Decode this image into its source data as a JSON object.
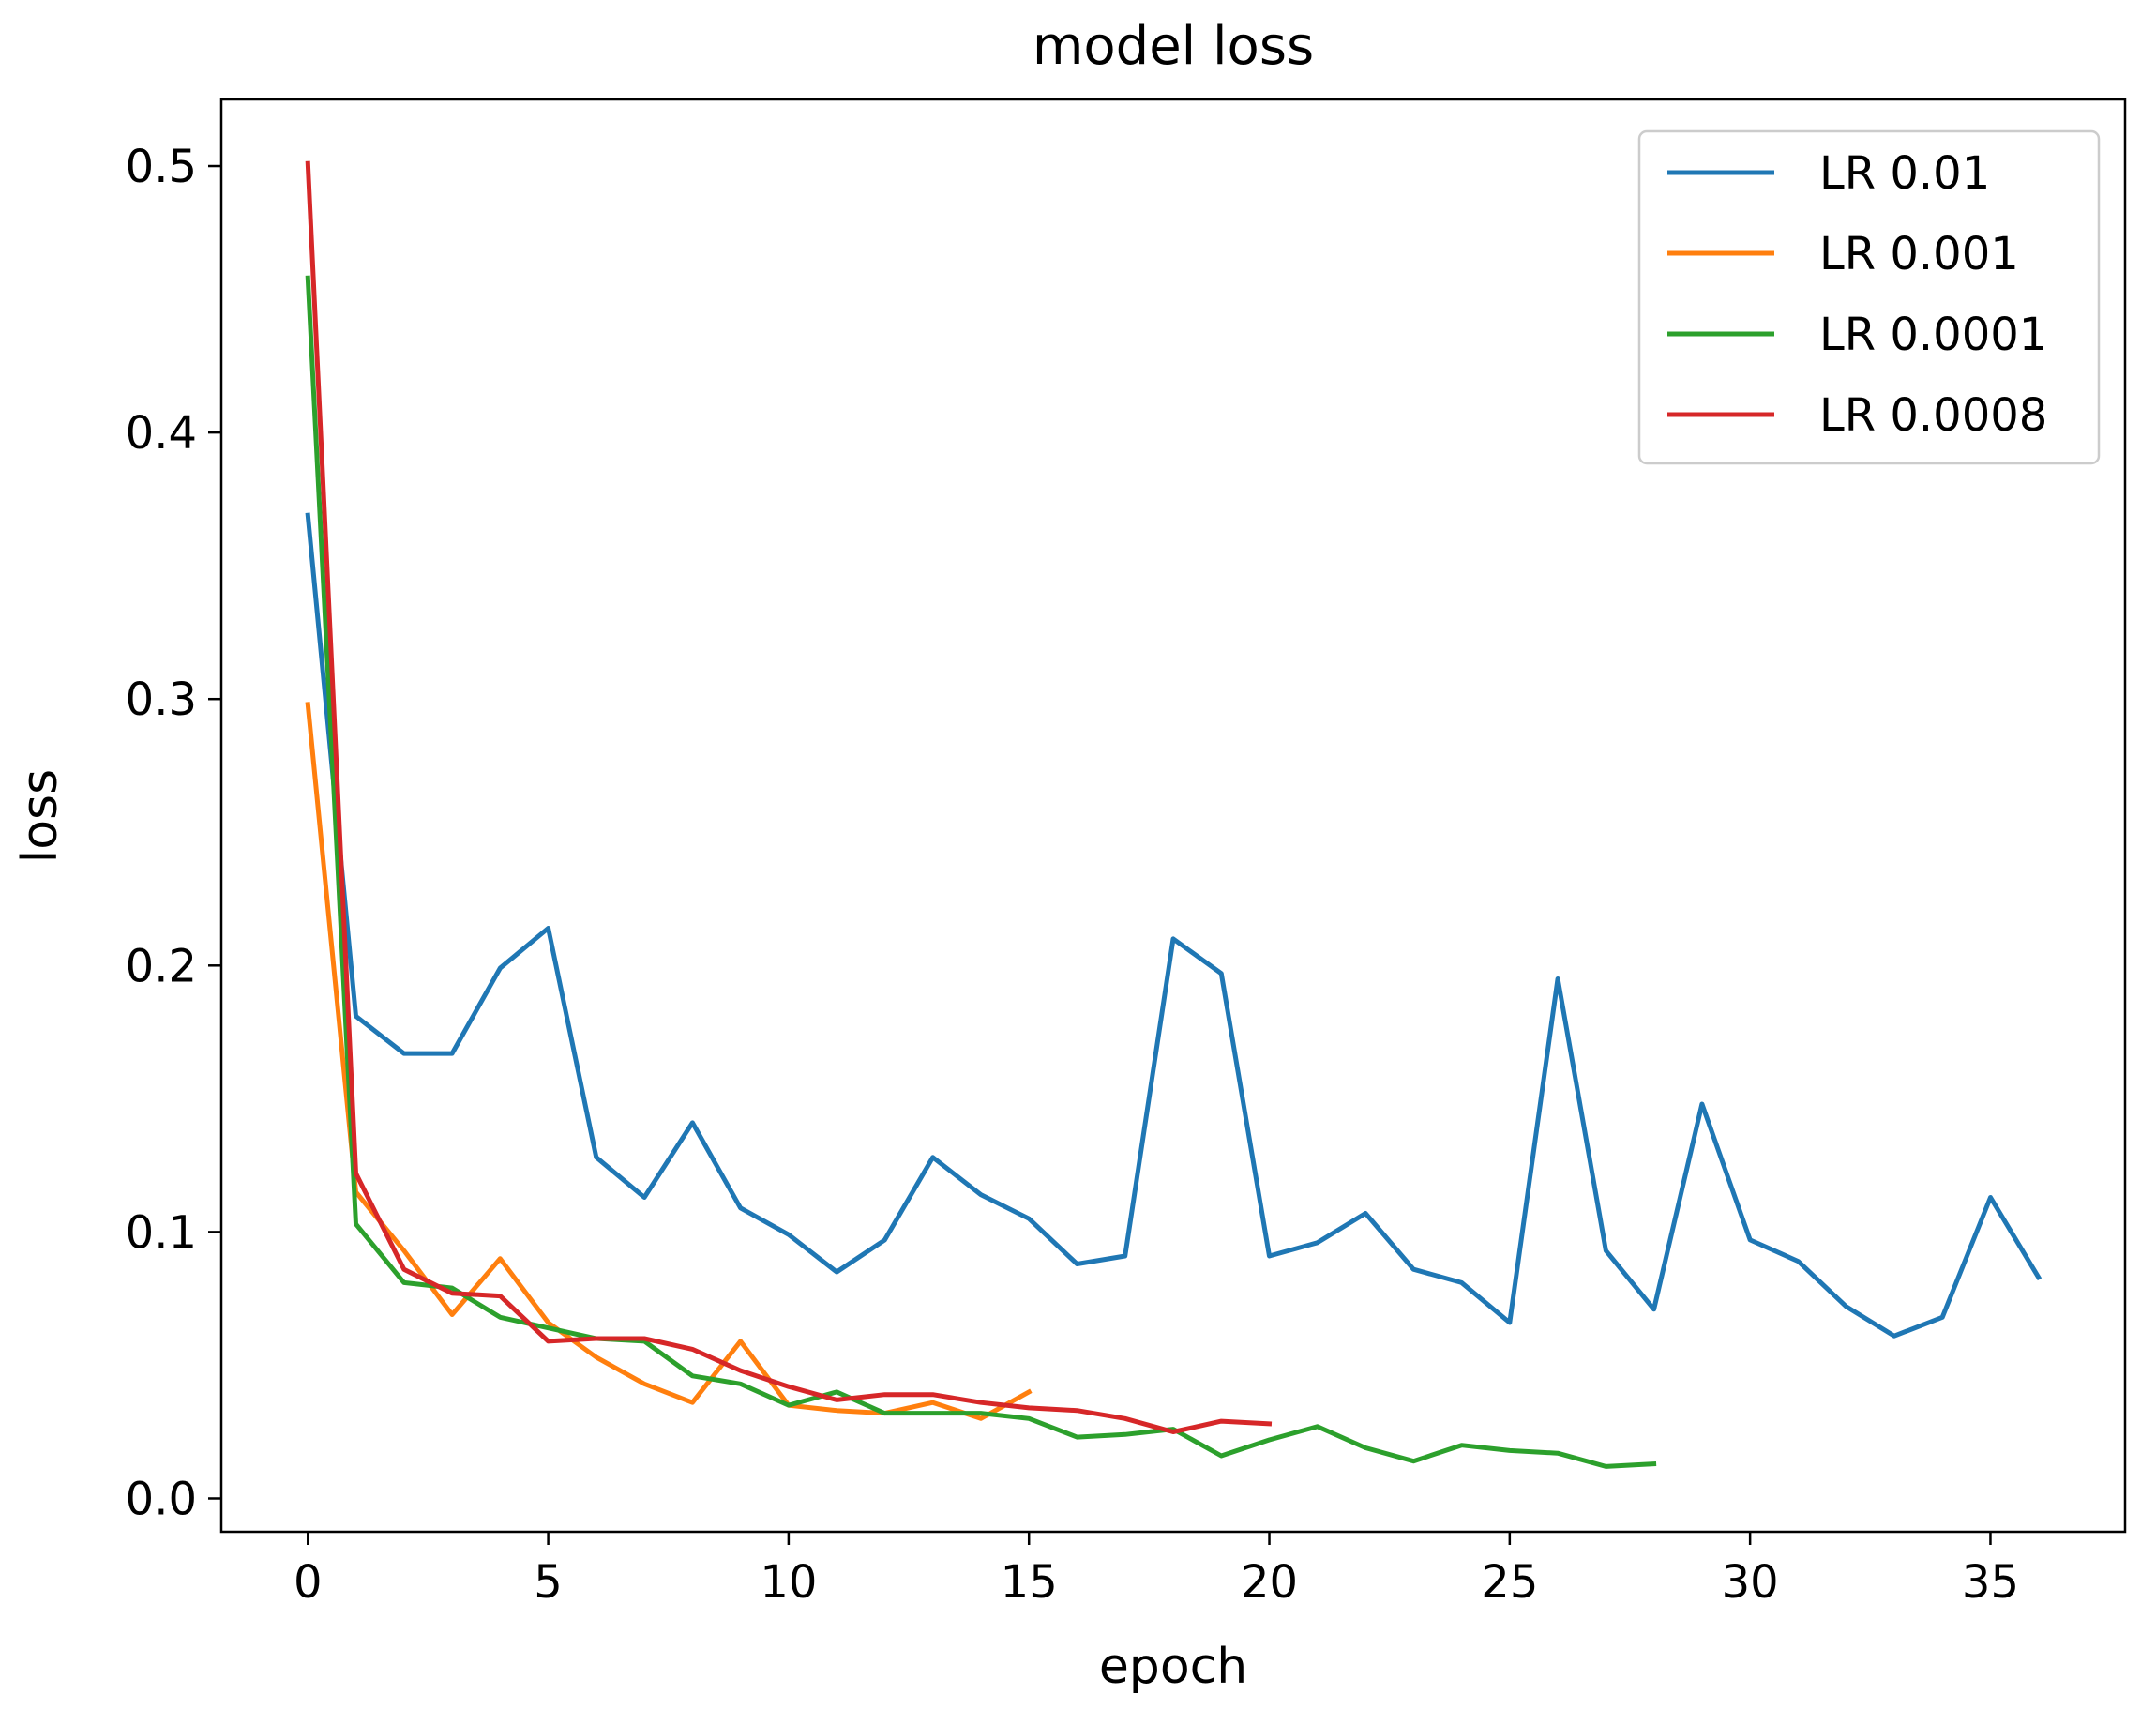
{
  "chart_data": {
    "type": "line",
    "title": "model loss",
    "xlabel": "epoch",
    "ylabel": "loss",
    "xlim": [
      -1.8,
      37.8
    ],
    "ylim": [
      -0.0125,
      0.525
    ],
    "xticks": [
      0,
      5,
      10,
      15,
      20,
      25,
      30,
      35
    ],
    "xtick_labels": [
      "0",
      "5",
      "10",
      "15",
      "20",
      "25",
      "30",
      "35"
    ],
    "yticks": [
      0.0,
      0.1,
      0.2,
      0.3,
      0.4,
      0.5
    ],
    "ytick_labels": [
      "0.0",
      "0.1",
      "0.2",
      "0.3",
      "0.4",
      "0.5"
    ],
    "grid": false,
    "legend_position": "top-right",
    "series": [
      {
        "name": "LR 0.01",
        "color": "#1f77b4",
        "x": [
          0,
          1,
          2,
          3,
          4,
          5,
          6,
          7,
          8,
          9,
          10,
          11,
          12,
          13,
          14,
          15,
          16,
          17,
          18,
          19,
          20,
          21,
          22,
          23,
          24,
          25,
          26,
          27,
          28,
          29,
          30,
          31,
          32,
          33,
          34,
          35,
          36
        ],
        "values": [
          0.369,
          0.181,
          0.167,
          0.167,
          0.199,
          0.214,
          0.128,
          0.113,
          0.141,
          0.109,
          0.099,
          0.085,
          0.097,
          0.128,
          0.114,
          0.105,
          0.088,
          0.091,
          0.21,
          0.197,
          0.091,
          0.096,
          0.107,
          0.086,
          0.081,
          0.066,
          0.195,
          0.093,
          0.071,
          0.148,
          0.097,
          0.089,
          0.072,
          0.061,
          0.068,
          0.113,
          0.083
        ]
      },
      {
        "name": "LR 0.001",
        "color": "#ff7f0e",
        "x": [
          0,
          1,
          2,
          3,
          4,
          5,
          6,
          7,
          8,
          9,
          10,
          11,
          12,
          13,
          14,
          15
        ],
        "values": [
          0.298,
          0.115,
          0.093,
          0.069,
          0.09,
          0.066,
          0.053,
          0.043,
          0.036,
          0.059,
          0.035,
          0.033,
          0.032,
          0.036,
          0.03,
          0.04
        ]
      },
      {
        "name": "LR 0.0001",
        "color": "#2ca02c",
        "x": [
          0,
          1,
          2,
          3,
          4,
          5,
          6,
          7,
          8,
          9,
          10,
          11,
          12,
          13,
          14,
          15,
          16,
          17,
          18,
          19,
          20,
          21,
          22,
          23,
          24,
          25,
          26,
          27,
          28
        ],
        "values": [
          0.458,
          0.103,
          0.081,
          0.079,
          0.068,
          0.064,
          0.06,
          0.059,
          0.046,
          0.043,
          0.035,
          0.04,
          0.032,
          0.032,
          0.032,
          0.03,
          0.023,
          0.024,
          0.026,
          0.016,
          0.022,
          0.027,
          0.019,
          0.014,
          0.02,
          0.018,
          0.017,
          0.012,
          0.013
        ]
      },
      {
        "name": "LR 0.0008",
        "color": "#d62728",
        "x": [
          0,
          1,
          2,
          3,
          4,
          5,
          6,
          7,
          8,
          9,
          10,
          11,
          12,
          13,
          14,
          15,
          16,
          17,
          18,
          19,
          20
        ],
        "values": [
          0.501,
          0.122,
          0.086,
          0.077,
          0.076,
          0.059,
          0.06,
          0.06,
          0.056,
          0.048,
          0.042,
          0.037,
          0.039,
          0.039,
          0.036,
          0.034,
          0.033,
          0.03,
          0.025,
          0.029,
          0.028
        ]
      }
    ]
  }
}
